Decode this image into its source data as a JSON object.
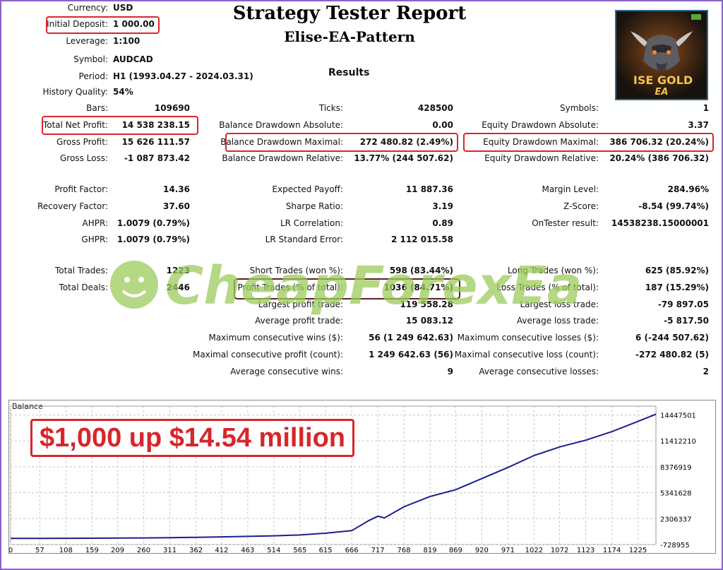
{
  "report": {
    "title": "Strategy Tester Report",
    "subtitle": "Elise-EA-Pattern",
    "results_heading": "Results"
  },
  "settings": [
    {
      "label": "Currency:",
      "value": "USD"
    },
    {
      "label": "Initial Deposit:",
      "value": "1 000.00"
    },
    {
      "label": "Leverage:",
      "value": "1:100"
    },
    {
      "label": "Symbol:",
      "value": "AUDCAD"
    },
    {
      "label": "Period:",
      "value": "H1 (1993.04.27 - 2024.03.31)"
    },
    {
      "label": "History Quality:",
      "value": "54%"
    }
  ],
  "results_col1": [
    {
      "label": "Bars:",
      "value": "109690"
    },
    {
      "label": "Total Net Profit:",
      "value": "14 538 238.15"
    },
    {
      "label": "Gross Profit:",
      "value": "15 626 111.57"
    },
    {
      "label": "Gross Loss:",
      "value": "-1 087 873.42"
    },
    {
      "label": "Profit Factor:",
      "value": "14.36"
    },
    {
      "label": "Recovery Factor:",
      "value": "37.60"
    },
    {
      "label": "AHPR:",
      "value": "1.0079 (0.79%)"
    },
    {
      "label": "GHPR:",
      "value": "1.0079 (0.79%)"
    },
    {
      "label": "Total Trades:",
      "value": "1223"
    },
    {
      "label": "Total Deals:",
      "value": "2446"
    }
  ],
  "results_col2": [
    {
      "label": "Ticks:",
      "value": "428500"
    },
    {
      "label": "Balance Drawdown Absolute:",
      "value": "0.00"
    },
    {
      "label": "Balance Drawdown Maximal:",
      "value": "272 480.82 (2.49%)"
    },
    {
      "label": "Balance Drawdown Relative:",
      "value": "13.77% (244 507.62)"
    },
    {
      "label": "Expected Payoff:",
      "value": "11 887.36"
    },
    {
      "label": "Sharpe Ratio:",
      "value": "3.19"
    },
    {
      "label": "LR Correlation:",
      "value": "0.89"
    },
    {
      "label": "LR Standard Error:",
      "value": "2 112 015.58"
    },
    {
      "label": "Short Trades (won %):",
      "value": "598 (83.44%)"
    },
    {
      "label": "Profit Trades (% of total):",
      "value": "1036 (84.71%)"
    },
    {
      "label": "Largest profit trade:",
      "value": "119 558.28"
    },
    {
      "label": "Average profit trade:",
      "value": "15 083.12"
    },
    {
      "label": "Maximum consecutive wins ($):",
      "value": "56 (1 249 642.63)"
    },
    {
      "label": "Maximal consecutive profit (count):",
      "value": "1 249 642.63 (56)"
    },
    {
      "label": "Average consecutive wins:",
      "value": "9"
    }
  ],
  "results_col3": [
    {
      "label": "Symbols:",
      "value": "1"
    },
    {
      "label": "Equity Drawdown Absolute:",
      "value": "3.37"
    },
    {
      "label": "Equity Drawdown Maximal:",
      "value": "386 706.32 (20.24%)"
    },
    {
      "label": "Equity Drawdown Relative:",
      "value": "20.24% (386 706.32)"
    },
    {
      "label": "Margin Level:",
      "value": "284.96%"
    },
    {
      "label": "Z-Score:",
      "value": "-8.54 (99.74%)"
    },
    {
      "label": "OnTester result:",
      "value": "14538238.15000001"
    },
    {
      "label": "Long Trades (won %):",
      "value": "625 (85.92%)"
    },
    {
      "label": "Loss Trades (% of total):",
      "value": "187 (15.29%)"
    },
    {
      "label": "Largest loss trade:",
      "value": "-79 897.05"
    },
    {
      "label": "Average loss trade:",
      "value": "-5 817.50"
    },
    {
      "label": "Maximum consecutive losses ($):",
      "value": "6 (-244 507.62)"
    },
    {
      "label": "Maximal consecutive loss (count):",
      "value": "-272 480.82 (5)"
    },
    {
      "label": "Average consecutive losses:",
      "value": "2"
    }
  ],
  "logo": {
    "text_line1": "ISE GOLD",
    "text_line2": "EA"
  },
  "watermark": {
    "text": "CheapForexEa"
  },
  "callout": {
    "text": "$1,000 up $14.54 million"
  },
  "colors": {
    "highlight_red": "#d7262a",
    "balance_line": "#1b1e8c",
    "watermark_green": "#9ccb5c"
  },
  "chart_data": {
    "type": "line",
    "title": "Balance",
    "series": [
      {
        "x": [
          0,
          57,
          108,
          159,
          209,
          260,
          311,
          362,
          412,
          463,
          514,
          565,
          615,
          666,
          700,
          717,
          730,
          768,
          819,
          869,
          920,
          971,
          1022,
          1072,
          1123,
          1174,
          1225,
          1260
        ],
        "values": [
          1000,
          1000,
          5000,
          15000,
          30000,
          50000,
          80000,
          120000,
          170000,
          230000,
          300000,
          400000,
          600000,
          900000,
          2100000,
          2600000,
          2400000,
          3700000,
          4900000,
          5700000,
          7000000,
          8300000,
          9700000,
          10700000,
          11500000,
          12500000,
          13700000,
          14538238
        ]
      }
    ],
    "x_ticks": [
      "0",
      "57",
      "108",
      "159",
      "209",
      "260",
      "311",
      "362",
      "412",
      "463",
      "514",
      "565",
      "615",
      "666",
      "717",
      "768",
      "819",
      "869",
      "920",
      "971",
      "1022",
      "1072",
      "1123",
      "1174",
      "1225"
    ],
    "y_ticks": [
      "14447501",
      "11412210",
      "8376919",
      "5341628",
      "2306337",
      "-728955"
    ],
    "xlim": [
      0,
      1260
    ],
    "ylim": [
      -728955,
      15482593
    ],
    "grid": true
  }
}
